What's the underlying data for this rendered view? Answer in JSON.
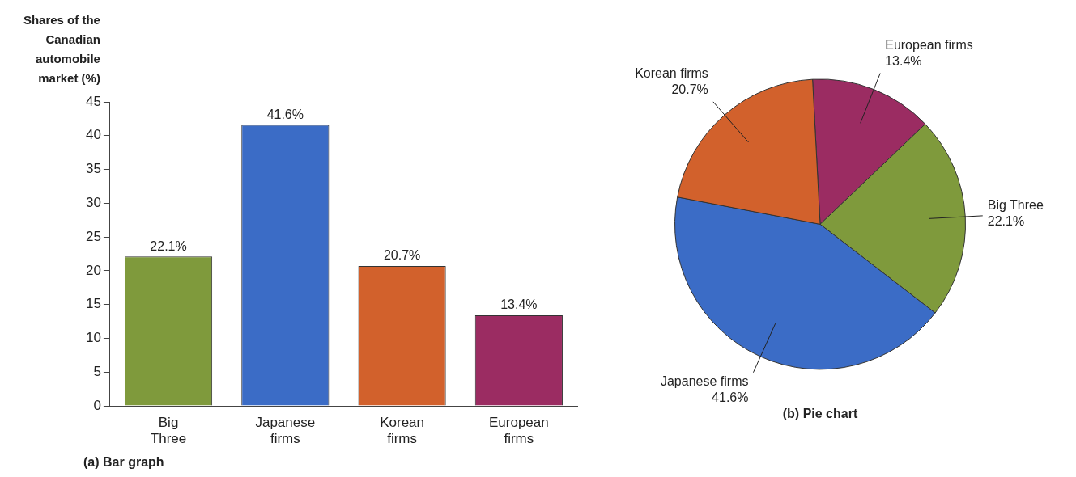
{
  "chart_data": [
    {
      "type": "bar",
      "title": "(a) Bar graph",
      "ylabel": "Shares of the Canadian automobile market (%)",
      "categories": [
        "Big Three",
        "Japanese firms",
        "Korean firms",
        "European firms"
      ],
      "values": [
        22.1,
        41.6,
        20.7,
        13.4
      ],
      "colors": [
        "#7f9a3c",
        "#3b6cc6",
        "#d2612c",
        "#9b2c62"
      ],
      "value_labels": [
        "22.1%",
        "41.6%",
        "20.7%",
        "13.4%"
      ],
      "ylim": [
        0,
        45
      ],
      "yticks": [
        0,
        5,
        10,
        15,
        20,
        25,
        30,
        35,
        40,
        45
      ],
      "grid": false,
      "legend": false
    },
    {
      "type": "pie",
      "title": "(b) Pie chart",
      "categories": [
        "European firms",
        "Big Three",
        "Japanese firms",
        "Korean firms"
      ],
      "values": [
        13.4,
        22.1,
        41.6,
        20.7
      ],
      "colors": [
        "#9b2c62",
        "#7f9a3c",
        "#3b6cc6",
        "#d2612c"
      ],
      "value_labels": [
        "13.4%",
        "22.1%",
        "41.6%",
        "20.7%"
      ],
      "legend": false
    }
  ]
}
